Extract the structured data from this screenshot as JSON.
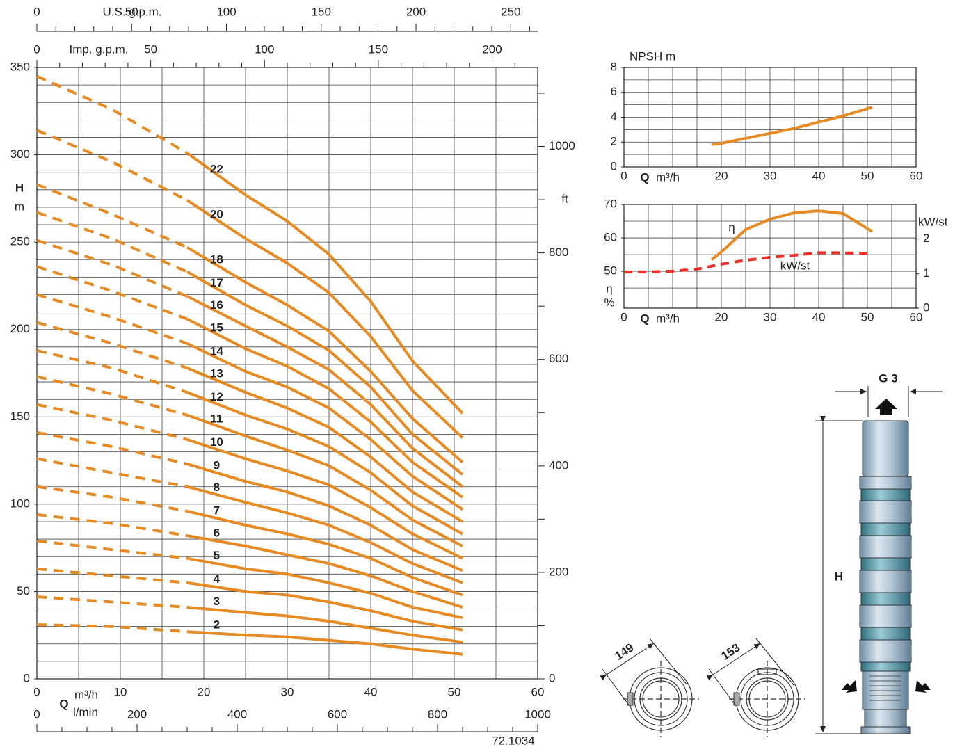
{
  "chart_data": [
    {
      "type": "line",
      "y_label": "H",
      "y_unit": "m",
      "x_label": "Q",
      "x_unit": "m³/h",
      "x": [
        0,
        9,
        18,
        25,
        30,
        35,
        40,
        45,
        51
      ],
      "xlim": [
        0,
        60
      ],
      "xticks": [
        0,
        10,
        20,
        30,
        40,
        50,
        60
      ],
      "xgrid": [
        0,
        5,
        10,
        15,
        20,
        25,
        30,
        35,
        40,
        45,
        50,
        55,
        60
      ],
      "ylim": [
        0,
        350
      ],
      "yticks": [
        0,
        50,
        100,
        150,
        200,
        250,
        300,
        350
      ],
      "ygrid": [
        0,
        10,
        20,
        30,
        40,
        50,
        60,
        70,
        80,
        90,
        100,
        110,
        120,
        130,
        140,
        150,
        160,
        170,
        180,
        190,
        200,
        210,
        220,
        230,
        240,
        250,
        260,
        270,
        280,
        290,
        300,
        310,
        320,
        330,
        340,
        350
      ],
      "y2_label": "ft",
      "y2lim": [
        0,
        1148.3
      ],
      "y2ticks": [
        0,
        200,
        400,
        600,
        800,
        1000
      ],
      "y2minor": [
        100,
        300,
        500,
        700,
        900,
        1100
      ],
      "secondary_x_axes": [
        {
          "label": "U.S. g.p.m.",
          "lim": [
            0,
            264.2
          ],
          "ticks": [
            0,
            50,
            100,
            150,
            200,
            250
          ],
          "minor_ticks": [
            10,
            20,
            30,
            40,
            60,
            70,
            80,
            90,
            110,
            120,
            130,
            140,
            160,
            170,
            180,
            190,
            210,
            220,
            230,
            240,
            260
          ]
        },
        {
          "label": "Imp. g.p.m.",
          "lim": [
            0,
            220
          ],
          "ticks": [
            0,
            50,
            100,
            150,
            200
          ],
          "minor_ticks": [
            10,
            20,
            30,
            40,
            60,
            70,
            80,
            90,
            110,
            120,
            130,
            140,
            160,
            170,
            180,
            190,
            210
          ]
        },
        {
          "label": "l/min",
          "lim": [
            0,
            1000
          ],
          "ticks": [
            0,
            200,
            400,
            600,
            800,
            1000
          ],
          "minor_ticks": [
            50,
            100,
            150,
            250,
            300,
            350,
            450,
            500,
            550,
            650,
            700,
            750,
            850,
            900,
            950
          ]
        }
      ],
      "note": "72.1034",
      "color": "#e68a24",
      "series": [
        {
          "name": "22",
          "extrapolated": [
            345,
            326,
            301,
            null,
            null,
            null,
            null,
            null,
            null
          ],
          "values": [
            null,
            null,
            301,
            277,
            262,
            243,
            216,
            182,
            152
          ]
        },
        {
          "name": "20",
          "extrapolated": [
            314,
            296,
            274,
            null,
            null,
            null,
            null,
            null,
            null
          ],
          "values": [
            null,
            null,
            274,
            252,
            238,
            221,
            196,
            165,
            138
          ]
        },
        {
          "name": "18",
          "extrapolated": [
            283,
            266,
            247,
            null,
            null,
            null,
            null,
            null,
            null
          ],
          "values": [
            null,
            null,
            247,
            227,
            214,
            199,
            176,
            149,
            124
          ]
        },
        {
          "name": "17",
          "extrapolated": [
            267,
            252,
            233,
            null,
            null,
            null,
            null,
            null,
            null
          ],
          "values": [
            null,
            null,
            233,
            214,
            202,
            188,
            167,
            140,
            117
          ]
        },
        {
          "name": "16",
          "extrapolated": [
            251,
            237,
            219,
            null,
            null,
            null,
            null,
            null,
            null
          ],
          "values": [
            null,
            null,
            219,
            202,
            190,
            177,
            157,
            132,
            110
          ]
        },
        {
          "name": "15",
          "extrapolated": [
            236,
            222,
            206,
            null,
            null,
            null,
            null,
            null,
            null
          ],
          "values": [
            null,
            null,
            206,
            189,
            179,
            166,
            147,
            124,
            104
          ]
        },
        {
          "name": "14",
          "extrapolated": [
            220,
            207,
            192,
            null,
            null,
            null,
            null,
            null,
            null
          ],
          "values": [
            null,
            null,
            192,
            176,
            167,
            155,
            137,
            116,
            97
          ]
        },
        {
          "name": "13",
          "extrapolated": [
            204,
            192,
            178,
            null,
            null,
            null,
            null,
            null,
            null
          ],
          "values": [
            null,
            null,
            178,
            164,
            155,
            144,
            127,
            107,
            90
          ]
        },
        {
          "name": "12",
          "extrapolated": [
            188,
            178,
            164,
            null,
            null,
            null,
            null,
            null,
            null
          ],
          "values": [
            null,
            null,
            164,
            151,
            143,
            133,
            118,
            99,
            83
          ]
        },
        {
          "name": "11",
          "extrapolated": [
            173,
            163,
            151,
            null,
            null,
            null,
            null,
            null,
            null
          ],
          "values": [
            null,
            null,
            151,
            139,
            131,
            122,
            108,
            91,
            76
          ]
        },
        {
          "name": "10",
          "extrapolated": [
            157,
            148,
            137,
            null,
            null,
            null,
            null,
            null,
            null
          ],
          "values": [
            null,
            null,
            137,
            126,
            119,
            111,
            98,
            83,
            69
          ]
        },
        {
          "name": "9",
          "extrapolated": [
            141,
            133,
            123,
            null,
            null,
            null,
            null,
            null,
            null
          ],
          "values": [
            null,
            null,
            123,
            113,
            107,
            99,
            88,
            74,
            62
          ]
        },
        {
          "name": "8",
          "extrapolated": [
            126,
            118,
            110,
            null,
            null,
            null,
            null,
            null,
            null
          ],
          "values": [
            null,
            null,
            110,
            101,
            95,
            88,
            78,
            66,
            55
          ]
        },
        {
          "name": "7",
          "extrapolated": [
            110,
            104,
            96,
            null,
            null,
            null,
            null,
            null,
            null
          ],
          "values": [
            null,
            null,
            96,
            88,
            83,
            77,
            69,
            58,
            48
          ]
        },
        {
          "name": "6",
          "extrapolated": [
            94,
            89,
            82,
            null,
            null,
            null,
            null,
            null,
            null
          ],
          "values": [
            null,
            null,
            82,
            76,
            71,
            66,
            59,
            50,
            41
          ]
        },
        {
          "name": "5",
          "extrapolated": [
            79,
            74,
            69,
            null,
            null,
            null,
            null,
            null,
            null
          ],
          "values": [
            null,
            null,
            69,
            63,
            60,
            55,
            49,
            41,
            35
          ]
        },
        {
          "name": "4",
          "extrapolated": [
            63,
            59,
            55,
            null,
            null,
            null,
            null,
            null,
            null
          ],
          "values": [
            null,
            null,
            55,
            50,
            48,
            44,
            39,
            33,
            28
          ]
        },
        {
          "name": "3",
          "extrapolated": [
            47,
            44,
            41,
            null,
            null,
            null,
            null,
            null,
            null
          ],
          "values": [
            null,
            null,
            41,
            38,
            36,
            33,
            29,
            25,
            21
          ]
        },
        {
          "name": "2",
          "extrapolated": [
            31,
            30,
            27,
            null,
            null,
            null,
            null,
            null,
            null
          ],
          "values": [
            null,
            null,
            27,
            25,
            24,
            22,
            20,
            17,
            14
          ]
        }
      ]
    },
    {
      "type": "line",
      "y_label": "NPSH m",
      "x_label": "Q",
      "x_unit": "m³/h",
      "xlim": [
        0,
        60
      ],
      "xticks": [
        0,
        20,
        30,
        40,
        50,
        60
      ],
      "xgrid": [
        0,
        5,
        10,
        15,
        20,
        25,
        30,
        35,
        40,
        45,
        50,
        55,
        60
      ],
      "ylim": [
        0,
        8
      ],
      "yticks": [
        0,
        2,
        4,
        6,
        8
      ],
      "ygrid": [
        0,
        1,
        2,
        3,
        4,
        5,
        6,
        7,
        8
      ],
      "series": [
        {
          "x": [
            18,
            20,
            25,
            30,
            35,
            40,
            45,
            51
          ],
          "values": [
            1.8,
            1.9,
            2.3,
            2.7,
            3.1,
            3.6,
            4.1,
            4.8
          ],
          "color": "#e68a24",
          "dash": false
        }
      ]
    },
    {
      "type": "line",
      "y_label": "η",
      "y_unit": "%",
      "x_label": "Q",
      "x_unit": "m³/h",
      "xlim": [
        0,
        60
      ],
      "xticks": [
        0,
        20,
        30,
        40,
        50,
        60
      ],
      "xgrid": [
        0,
        5,
        10,
        15,
        20,
        25,
        30,
        35,
        40,
        45,
        50,
        55,
        60
      ],
      "ylim": [
        39,
        70
      ],
      "yticks": [
        50,
        60,
        70
      ],
      "ygrid": [
        45,
        50,
        55,
        60,
        65,
        70
      ],
      "y2_label": "kW/st",
      "y2lim": [
        0,
        3
      ],
      "y2ticks": [
        0,
        1,
        2
      ],
      "series": [
        {
          "name": "η",
          "x": [
            18,
            20,
            25,
            30,
            35,
            40,
            45,
            51
          ],
          "values": [
            53.5,
            55.8,
            62.5,
            65.6,
            67.5,
            68.1,
            67.3,
            61.9
          ],
          "color": "#e68a24",
          "dash": false
        },
        {
          "name": "kW/st",
          "axis": "y2",
          "x": [
            0,
            5,
            10,
            15,
            20,
            25,
            30,
            35,
            40,
            45,
            51
          ],
          "values": [
            1.05,
            1.05,
            1.07,
            1.13,
            1.27,
            1.39,
            1.47,
            1.53,
            1.6,
            1.6,
            1.58
          ],
          "color": "#e8302a",
          "dash": true
        }
      ]
    }
  ],
  "drawings": {
    "outlet": "G 3",
    "height": "H",
    "diameter_a": "149",
    "diameter_b": "153"
  }
}
